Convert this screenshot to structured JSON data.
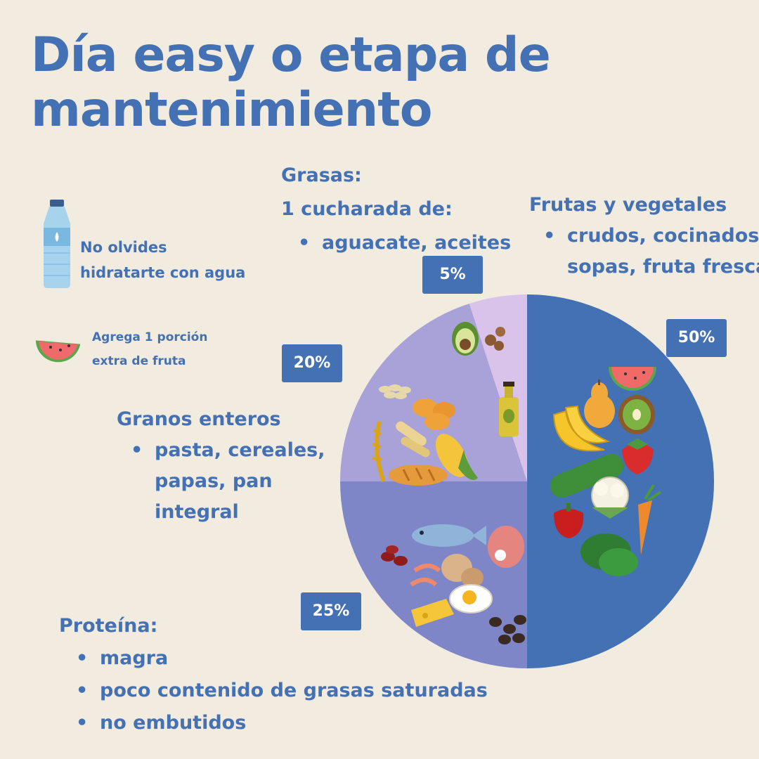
{
  "title_lines": [
    "Día easy o etapa de",
    "mantenimiento"
  ],
  "colors": {
    "accent": "#4470b4",
    "background": "#f2ebdf",
    "badge_text": "#ffffff"
  },
  "tips": [
    {
      "icon": "water-bottle-icon",
      "lines": [
        "No olvides",
        "hidratarte con agua"
      ]
    },
    {
      "icon": "watermelon-icon",
      "lines": [
        "Agrega 1 porción",
        "extra de fruta"
      ]
    }
  ],
  "grasas": {
    "heading": "Grasas:",
    "sub": "1 cucharada de:",
    "items": [
      "aguacate, aceites"
    ]
  },
  "frutas": {
    "heading": "Frutas y vegetales",
    "items": [
      "crudos, cocinados,"
    ],
    "continuation": "sopas, fruta fresca"
  },
  "granos": {
    "heading": "Granos enteros",
    "items": [
      "pasta, cereales,"
    ],
    "continuation": [
      "papas, pan",
      "integral"
    ]
  },
  "proteina": {
    "heading": "Proteína:",
    "items": [
      "magra",
      "poco contenido de grasas saturadas",
      "no embutidos"
    ]
  },
  "chart_data": {
    "type": "pie",
    "title": "",
    "categories": [
      "Frutas y vegetales",
      "Proteína",
      "Granos enteros",
      "Grasas"
    ],
    "values": [
      50,
      25,
      20,
      5
    ],
    "labels": [
      "50%",
      "25%",
      "20%",
      "5%"
    ],
    "colors": [
      "#4470b4",
      "#7e86c8",
      "#a9a2d8",
      "#d9c3ea"
    ],
    "slice_icons": [
      [
        "watermelon-icon",
        "pear-icon",
        "kiwi-icon",
        "banana-icon",
        "strawberry-icon",
        "cucumber-icon",
        "cauliflower-icon",
        "pepper-icon",
        "carrot-icon",
        "spinach-icon"
      ],
      [
        "fish-icon",
        "meat-icon",
        "beans-icon",
        "shrimp-icon",
        "nuts-icon",
        "cheese-icon",
        "egg-icon",
        "coffee-beans-icon"
      ],
      [
        "oats-icon",
        "nuggets-icon",
        "wheat-icon",
        "pasta-icon",
        "corn-icon",
        "bread-icon"
      ],
      [
        "avocado-icon",
        "hazelnut-icon",
        "oil-bottle-icon"
      ]
    ],
    "legend": "none"
  }
}
